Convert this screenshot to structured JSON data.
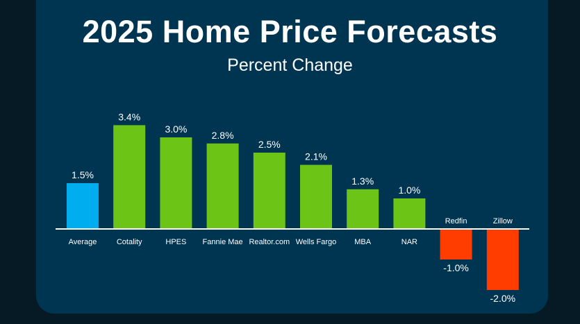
{
  "chart_data": {
    "type": "bar",
    "title": "2025 Home Price Forecasts",
    "subtitle": "Percent Change",
    "categories": [
      "Average",
      "Cotality",
      "HPES",
      "Fannie Mae",
      "Realtor.com",
      "Wells Fargo",
      "MBA",
      "NAR",
      "Redfin",
      "Zillow"
    ],
    "values": [
      1.5,
      3.4,
      3.0,
      2.8,
      2.5,
      2.1,
      1.3,
      1.0,
      -1.0,
      -2.0
    ],
    "value_labels": [
      "1.5%",
      "3.4%",
      "3.0%",
      "2.8%",
      "2.5%",
      "2.1%",
      "1.3%",
      "1.0%",
      "-1.0%",
      "-2.0%"
    ],
    "bar_colors": [
      "#00aeef",
      "#6cc417",
      "#6cc417",
      "#6cc417",
      "#6cc417",
      "#6cc417",
      "#6cc417",
      "#6cc417",
      "#ff3d00",
      "#ff3d00"
    ],
    "ylim": [
      -2.0,
      3.4
    ],
    "grid": false,
    "xlabel": "",
    "ylabel": ""
  }
}
